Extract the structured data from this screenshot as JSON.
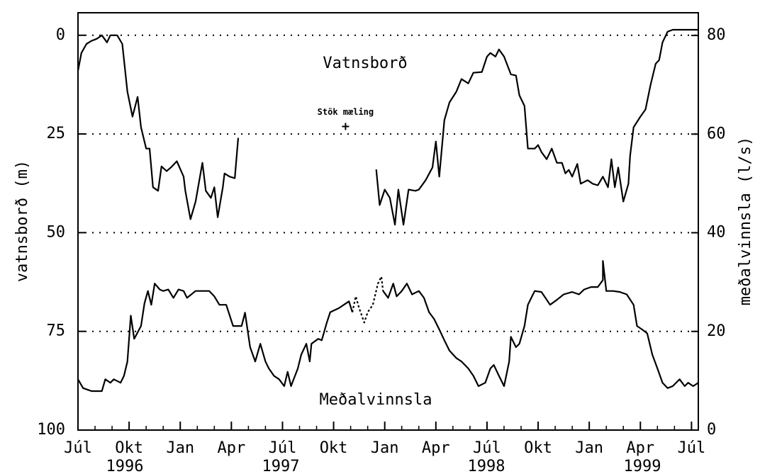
{
  "chart_data": {
    "type": "line",
    "y_label": "vatnsborð (m)",
    "y2_label": "meðalvinnsla (l/s)",
    "annotations": [
      "Vatnsborð",
      "Meðalvinnsla"
    ],
    "year_labels": [
      "1996",
      "1997",
      "1998",
      "1999"
    ],
    "xlim": [
      0,
      36.4
    ],
    "xticks": [
      {
        "value": 0,
        "label": "Júl"
      },
      {
        "value": 3,
        "label": "Okt"
      },
      {
        "value": 6,
        "label": "Jan"
      },
      {
        "value": 9,
        "label": "Apr"
      },
      {
        "value": 12,
        "label": "Júl"
      },
      {
        "value": 15,
        "label": "Okt"
      },
      {
        "value": 18,
        "label": "Jan"
      },
      {
        "value": 21,
        "label": "Apr"
      },
      {
        "value": 24,
        "label": "Júl"
      },
      {
        "value": 27,
        "label": "Okt"
      },
      {
        "value": 30,
        "label": "Jan"
      },
      {
        "value": 33,
        "label": "Apr"
      },
      {
        "value": 36,
        "label": "Júl"
      }
    ],
    "x_minor_step": 1,
    "ylim": [
      -5.7,
      100
    ],
    "y_inverted": true,
    "yticks": [
      0,
      25,
      50,
      75,
      100
    ],
    "y2lim": [
      0,
      84.6
    ],
    "y2ticks": [
      0,
      20,
      40,
      60,
      80
    ],
    "grid": true,
    "measurement": {
      "label": "Stök mæling",
      "x": 15.7,
      "value": 23.1
    },
    "series": [
      {
        "axis": "y",
        "color": "#000000",
        "x": [
          0,
          0.2,
          0.5,
          0.8,
          1.1,
          1.4,
          1.7,
          1.9,
          2.3,
          2.6,
          2.9,
          3.2,
          3.5,
          3.7,
          4.0,
          4.2,
          4.4,
          4.7,
          4.9,
          5.2,
          5.5,
          5.8,
          6.2,
          6.3,
          6.6,
          6.9,
          7.3,
          7.5,
          7.8,
          8.0,
          8.2,
          8.5,
          8.6,
          8.9,
          9.2,
          9.4,
          null,
          17.5,
          17.7,
          18,
          18.3,
          18.6,
          18.8,
          19.1,
          19.4,
          19.8,
          20,
          20.4,
          20.8,
          21,
          21.2,
          21.5,
          21.8,
          22.2,
          22.5,
          22.9,
          23.2,
          23.7,
          24,
          24.2,
          24.5,
          24.7,
          25,
          25.4,
          25.7,
          25.9,
          26.2,
          26.4,
          26.8,
          27,
          27.2,
          27.5,
          27.8,
          28.1,
          28.4,
          28.6,
          28.8,
          29,
          29.3,
          29.5,
          29.9,
          30.2,
          30.5,
          30.8,
          31.1,
          31.3,
          31.5,
          31.7,
          32,
          32.3,
          32.4,
          32.6,
          33,
          33.3,
          33.6,
          33.9,
          34.1,
          34.3,
          34.6,
          34.9,
          36.4
        ],
        "values": [
          9,
          4.5,
          2.2,
          1.4,
          0.9,
          0,
          1.8,
          0,
          0,
          2.2,
          14.3,
          20.6,
          15.6,
          23.3,
          28.7,
          28.7,
          38.5,
          39.4,
          33.2,
          34.4,
          33.3,
          31.9,
          35.8,
          39.4,
          46.6,
          42.1,
          32.3,
          39.4,
          41.2,
          38.5,
          46.1,
          38.5,
          35,
          35.8,
          36.2,
          26,
          null,
          34,
          43,
          39.1,
          41.2,
          48,
          39.1,
          48,
          39.1,
          39.4,
          39.1,
          36.7,
          33.5,
          26.9,
          35.8,
          21.5,
          17,
          14.3,
          11.1,
          12.2,
          9.5,
          9.3,
          5.4,
          4.5,
          5.4,
          3.6,
          5.4,
          9.9,
          10.2,
          15.2,
          17.9,
          28.7,
          28.7,
          27.8,
          29.6,
          31.4,
          28.7,
          32.3,
          32.3,
          35,
          34.1,
          35.8,
          32.6,
          37.6,
          36.7,
          37.6,
          38,
          35.8,
          38.5,
          31.4,
          38.5,
          33.5,
          42.1,
          37.6,
          30.5,
          23.3,
          20.6,
          18.8,
          12.5,
          7.2,
          6.3,
          1.8,
          -0.9,
          -1.4,
          -1.4
        ]
      },
      {
        "axis": "y2",
        "color": "#000000",
        "x": [
          0,
          0.3,
          0.8,
          1.4,
          1.6,
          1.9,
          2.1,
          2.5,
          2.7,
          2.9,
          3.1,
          3.3,
          3.7,
          3.9,
          4.1,
          4.3,
          4.5,
          4.8,
          5.0,
          5.3,
          5.6,
          5.9,
          6.2,
          6.4,
          6.9,
          7.3,
          7.7,
          8.0,
          8.3,
          8.7,
          9.1,
          9.6,
          9.8,
          10.1,
          10.4,
          10.7,
          11.0,
          11.2,
          11.5,
          11.8,
          12.1,
          12.3,
          12.5,
          12.9,
          13.1,
          13.4,
          13.6,
          13.7,
          14.1,
          14.3,
          14.6,
          14.8,
          15.3,
          15.6,
          15.9,
          16.1,
          null,
          17.9,
          18.2,
          18.5,
          18.7,
          19.0,
          19.3,
          19.6,
          20.0,
          20.3,
          20.6,
          20.9,
          21.2,
          21.5,
          21.8,
          22.2,
          22.5,
          22.9,
          23.2,
          23.5,
          23.9,
          24.2,
          24.4,
          24.7,
          25.0,
          25.3,
          25.4,
          25.7,
          25.9,
          26.2,
          26.4,
          26.6,
          26.8,
          27.2,
          27.7,
          28.1,
          28.5,
          29.0,
          29.4,
          29.7,
          30.1,
          30.5,
          30.8,
          30.8,
          31.0,
          31.4,
          31.8,
          32.2,
          32.6,
          32.8,
          33.1,
          33.4,
          33.7,
          34.0,
          34.3,
          34.6,
          34.9,
          35.3,
          35.6,
          35.8,
          36.1,
          36.4
        ],
        "values": [
          10.3,
          8.5,
          7.9,
          7.9,
          10.3,
          9.6,
          10.3,
          9.6,
          11,
          13.9,
          23.2,
          18.5,
          21.1,
          25.7,
          28.2,
          25.4,
          29.7,
          28.5,
          28.2,
          28.5,
          26.8,
          28.5,
          28.2,
          26.8,
          28.2,
          28.2,
          28.2,
          27.1,
          25.4,
          25.4,
          21.1,
          21.1,
          23.8,
          16.8,
          13.9,
          17.5,
          13.9,
          12.5,
          11,
          10.3,
          8.9,
          11.8,
          8.9,
          12.5,
          15.3,
          17.5,
          13.9,
          17.5,
          18.5,
          18.2,
          21.8,
          23.9,
          24.7,
          25.4,
          26.1,
          23.9,
          null,
          28.2,
          26.8,
          29.7,
          27.1,
          28.2,
          29.7,
          27.5,
          28.2,
          26.8,
          23.9,
          22.5,
          20.4,
          18.2,
          16.1,
          14.6,
          13.9,
          12.5,
          11,
          8.9,
          9.6,
          12.5,
          13.2,
          11,
          8.9,
          13.9,
          18.9,
          16.8,
          17.5,
          21.1,
          25.4,
          26.8,
          28.2,
          28,
          25.4,
          26.4,
          27.5,
          28,
          27.5,
          28.5,
          29,
          29,
          30.4,
          34.3,
          28.2,
          28.2,
          28,
          27.5,
          25.4,
          21.1,
          20.4,
          19.6,
          15.3,
          12.5,
          9.6,
          8.5,
          8.9,
          10.3,
          8.9,
          9.6,
          8.9,
          9.6
        ]
      },
      {
        "axis": "y2",
        "color": "#000000",
        "dashed": true,
        "x": [
          16.1,
          16.3,
          16.5,
          16.8,
          17.0,
          17.3,
          17.6,
          17.8,
          17.9
        ],
        "values": [
          23.9,
          27.1,
          24.7,
          21.8,
          23.9,
          25.4,
          29.7,
          31.1,
          28.2
        ]
      }
    ]
  }
}
